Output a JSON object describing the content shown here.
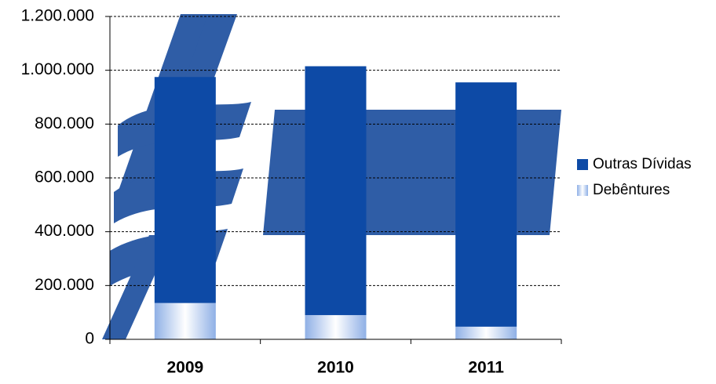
{
  "chart_data": {
    "type": "stacked-bar",
    "categories": [
      "2009",
      "2010",
      "2011"
    ],
    "series": [
      {
        "name": "Debêntures",
        "color": "#8fb0e6",
        "values": [
          135000,
          90000,
          47000
        ]
      },
      {
        "name": "Outras Dívidas",
        "color": "#0d4aa6",
        "values": [
          840000,
          925000,
          908000
        ]
      }
    ],
    "ylim": [
      0,
      1200000
    ],
    "yticks": [
      0,
      {
        "value": 200000,
        "label": "200.000"
      },
      {
        "value": 400000,
        "label": "400.000"
      },
      {
        "value": 600000,
        "label": "600.000"
      },
      {
        "value": 800000,
        "label": "800.000"
      },
      {
        "value": 1000000,
        "label": "1.000.000"
      },
      {
        "value": 1200000,
        "label": "1.200.000"
      }
    ],
    "grid": true,
    "legend": "right"
  }
}
